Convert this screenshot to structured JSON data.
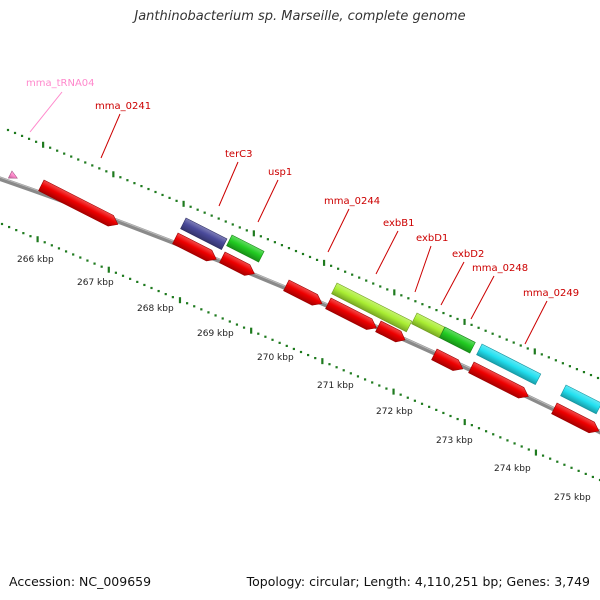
{
  "title": "Janthinobacterium sp. Marseille, complete genome",
  "footer": {
    "accession": "Accession: NC_009659",
    "summary": "Topology: circular; Length: 4,110,251 bp; Genes: 3,749"
  },
  "colors": {
    "backbone": "#8a8a8a",
    "tick": "#1e7a1e",
    "label_red": "#cc0000",
    "label_trna": "#ff88cc",
    "red_gene": "#ee0000",
    "navy_gene": "#4a4a9a",
    "green_gene": "#22cc22",
    "lime_gene": "#aaee33",
    "cyan_gene": "#22e0f0",
    "trna": "#ff88cc"
  },
  "position_ticks": [
    "266 kbp",
    "267 kbp",
    "268 kbp",
    "269 kbp",
    "270 kbp",
    "271 kbp",
    "272 kbp",
    "273 kbp",
    "274 kbp",
    "275 kbp"
  ],
  "gene_labels": [
    "mma_tRNA04",
    "mma_0241",
    "terC3",
    "usp1",
    "mma_0244",
    "exbB1",
    "exbD1",
    "exbD2",
    "mma_0248",
    "mma_0249"
  ],
  "features": [
    {
      "name": "mma_tRNA04",
      "type": "trna",
      "color": "trna"
    },
    {
      "name": "mma_0241",
      "type": "gene",
      "color": "red_gene"
    },
    {
      "name": "terC3",
      "type": "gene",
      "color": "navy_gene"
    },
    {
      "name": "terC3-cds",
      "type": "cds",
      "color": "red_gene"
    },
    {
      "name": "usp1",
      "type": "gene",
      "color": "green_gene"
    },
    {
      "name": "usp1-cds",
      "type": "cds",
      "color": "red_gene"
    },
    {
      "name": "mma_0244",
      "type": "gene",
      "color": "red_gene"
    },
    {
      "name": "exbB1",
      "type": "gene",
      "color": "lime_gene"
    },
    {
      "name": "exbB1-cds",
      "type": "cds",
      "color": "red_gene"
    },
    {
      "name": "exbD1",
      "type": "gene",
      "color": "lime_gene"
    },
    {
      "name": "exbD1-cds",
      "type": "cds",
      "color": "red_gene"
    },
    {
      "name": "exbD2",
      "type": "gene",
      "color": "green_gene"
    },
    {
      "name": "exbD2-cds",
      "type": "cds",
      "color": "red_gene"
    },
    {
      "name": "mma_0248",
      "type": "gene",
      "color": "cyan_gene"
    },
    {
      "name": "mma_0248-cds",
      "type": "cds",
      "color": "red_gene"
    },
    {
      "name": "mma_0249",
      "type": "gene",
      "color": "cyan_gene"
    },
    {
      "name": "mma_0249-cds",
      "type": "cds",
      "color": "red_gene"
    }
  ]
}
